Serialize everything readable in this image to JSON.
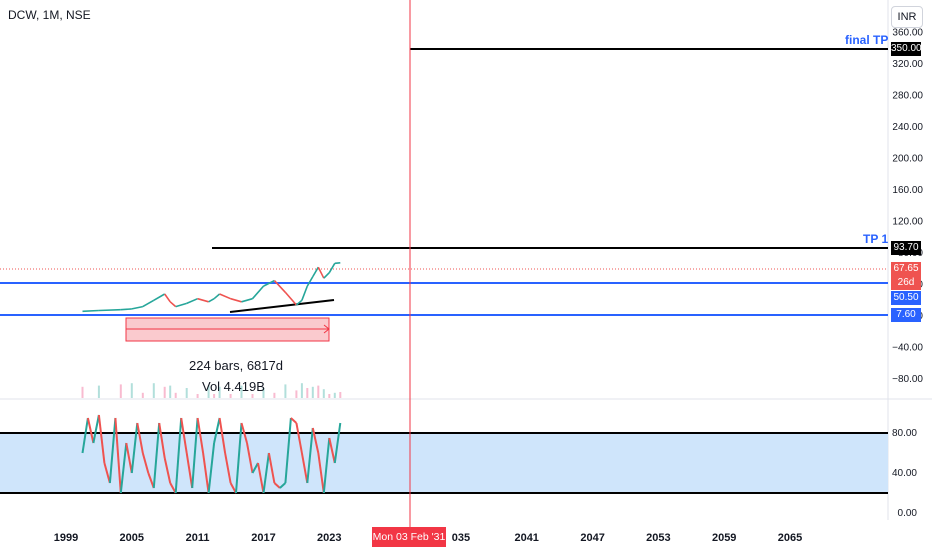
{
  "header": {
    "symbol": "DCW, 1M, NSE",
    "currency": "INR"
  },
  "price_tags": {
    "final_tp": "350.00",
    "tp1": "93.70",
    "last_price": "67.65",
    "countdown": "26d 0h",
    "blue_upper": "50.50",
    "blue_lower": "7.60"
  },
  "labels": {
    "final_tp": "final TP",
    "tp1": "TP 1"
  },
  "measure": {
    "bars": "224 bars, 6817d",
    "vol": "Vol 4.419B"
  },
  "crosshair": {
    "date": "Mon 03 Feb '31"
  },
  "colors": {
    "up": "#26a69a",
    "down": "#ef5350",
    "blue_line": "#2962ff",
    "crosshair": "#f23645",
    "band_fill": "#cfe5fb",
    "measure_fill": "#f7a7ad"
  },
  "chart_data": [
    {
      "type": "line",
      "title": "DCW, 1M, NSE",
      "xlabel": "",
      "ylabel": "",
      "x_ticks": [
        "1999",
        "2005",
        "2011",
        "2017",
        "2023",
        "2035",
        "2041",
        "2047",
        "2053",
        "2059",
        "2065"
      ],
      "y_ticks": [
        "360.00",
        "320.00",
        "280.00",
        "240.00",
        "200.00",
        "160.00",
        "120.00",
        "80.00",
        "40.00",
        "0.00",
        "−40.00",
        "−80.00"
      ],
      "ylim": [
        -100,
        370
      ],
      "x": [
        2000.5,
        2002,
        2004,
        2005,
        2006,
        2007,
        2008,
        2008.5,
        2009,
        2010,
        2011,
        2012,
        2012.5,
        2013,
        2014,
        2015,
        2016,
        2017,
        2018,
        2019,
        2020,
        2020.5,
        2021,
        2021.5,
        2022,
        2022.5,
        2023,
        2023.5,
        2024
      ],
      "series": [
        {
          "values": [
            6,
            7,
            8,
            9,
            12,
            20,
            28,
            18,
            12,
            16,
            22,
            18,
            22,
            28,
            22,
            18,
            22,
            38,
            45,
            30,
            14,
            20,
            38,
            50,
            62,
            48,
            55,
            67,
            67.65
          ]
        }
      ],
      "horizontal_levels": [
        350.0,
        93.7,
        50.5,
        7.6
      ]
    },
    {
      "type": "line",
      "title": "",
      "y_ticks": [
        "80.00",
        "40.00",
        "0.00"
      ],
      "ylim": [
        -20,
        110
      ],
      "shaded_band": [
        20,
        80
      ],
      "x": [
        2000.5,
        2001,
        2001.5,
        2002,
        2002.5,
        2003,
        2003.5,
        2004,
        2004.5,
        2005,
        2005.5,
        2006,
        2006.5,
        2007,
        2007.5,
        2008,
        2008.5,
        2009,
        2009.5,
        2010,
        2010.5,
        2011,
        2011.5,
        2012,
        2012.5,
        2013,
        2013.5,
        2014,
        2014.5,
        2015,
        2015.5,
        2016,
        2016.5,
        2017,
        2017.5,
        2018,
        2018.5,
        2019,
        2019.5,
        2020,
        2020.5,
        2021,
        2021.5,
        2022,
        2022.5,
        2023,
        2023.5,
        2024
      ],
      "series": [
        {
          "name": "",
          "values": [
            60,
            95,
            70,
            98,
            50,
            30,
            95,
            20,
            70,
            40,
            90,
            60,
            40,
            25,
            90,
            55,
            30,
            20,
            95,
            60,
            25,
            95,
            60,
            20,
            70,
            95,
            60,
            30,
            20,
            90,
            70,
            40,
            50,
            20,
            60,
            30,
            25,
            30,
            95,
            90,
            60,
            30,
            85,
            60,
            20,
            75,
            50,
            90
          ]
        }
      ]
    }
  ]
}
